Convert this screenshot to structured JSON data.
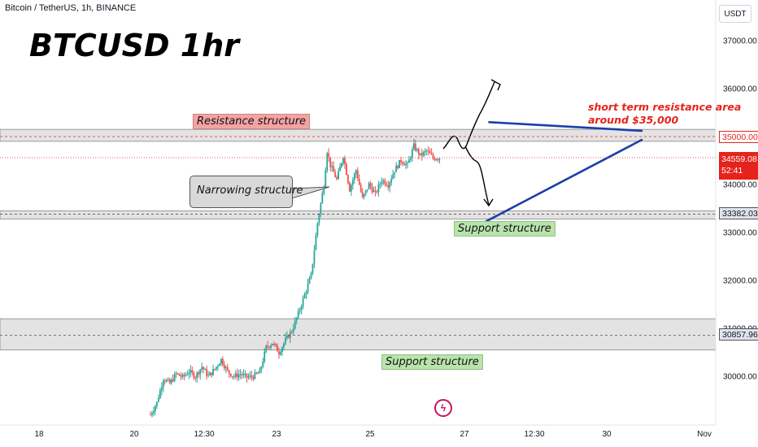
{
  "header": {
    "symbol_line": "Bitcoin / TetherUS, 1h, BINANCE",
    "currency_button": "USDT"
  },
  "title": "BTCUSD 1hr",
  "annotations": {
    "resistance_label": "Resistance structure",
    "narrowing_label": "Narrowing structure",
    "support_label_upper": "Support structure",
    "support_label_lower": "Support structure",
    "note_line1": "short term resistance area",
    "note_line2": "around $35,000"
  },
  "price_tags": {
    "resistance": "35000.00",
    "last_price": "34559.08",
    "countdown": "52:41",
    "support_upper": "33382.03",
    "support_lower": "30857.96"
  },
  "colors": {
    "up": "#26a69a",
    "down": "#ef5350",
    "trendline": "#1a3fa8",
    "note": "#e5231c",
    "zone": "#d9d9d9"
  },
  "icons": {
    "logo": "lightning-icon"
  },
  "chart_data": {
    "type": "candlestick",
    "y_ticks": [
      "37000.00",
      "36000.00",
      "35000.00",
      "34000.00",
      "33000.00",
      "32000.00",
      "31000.00",
      "30000.00"
    ],
    "x_ticks": [
      "18",
      "20",
      "12:30",
      "23",
      "25",
      "27",
      "12:30",
      "30",
      "Nov"
    ],
    "ylim": [
      29100,
      37700
    ],
    "zones": [
      {
        "name": "resistance",
        "low": 34900,
        "high": 35150
      },
      {
        "name": "support_upper",
        "low": 33280,
        "high": 33450
      },
      {
        "name": "support_lower",
        "low": 30550,
        "high": 31200
      }
    ],
    "trendlines": [
      {
        "name": "upper",
        "start": [
          70,
          35300
        ],
        "end": [
          101,
          35120
        ]
      },
      {
        "name": "lower",
        "start": [
          69,
          33230
        ],
        "end": [
          101,
          34930
        ]
      }
    ],
    "price_series": [
      {
        "x": 0,
        "y": 29200
      },
      {
        "x": 2,
        "y": 29450
      },
      {
        "x": 4,
        "y": 29950
      },
      {
        "x": 6,
        "y": 29850
      },
      {
        "x": 8,
        "y": 30050
      },
      {
        "x": 10,
        "y": 29980
      },
      {
        "x": 12,
        "y": 30100
      },
      {
        "x": 14,
        "y": 30000
      },
      {
        "x": 16,
        "y": 30200
      },
      {
        "x": 18,
        "y": 30000
      },
      {
        "x": 20,
        "y": 30150
      },
      {
        "x": 22,
        "y": 30350
      },
      {
        "x": 24,
        "y": 30100
      },
      {
        "x": 26,
        "y": 30000
      },
      {
        "x": 28,
        "y": 30050
      },
      {
        "x": 30,
        "y": 29980
      },
      {
        "x": 32,
        "y": 30000
      },
      {
        "x": 34,
        "y": 30080
      },
      {
        "x": 36,
        "y": 30600
      },
      {
        "x": 38,
        "y": 30700
      },
      {
        "x": 40,
        "y": 30500
      },
      {
        "x": 42,
        "y": 30750
      },
      {
        "x": 44,
        "y": 30950
      },
      {
        "x": 46,
        "y": 31300
      },
      {
        "x": 48,
        "y": 31700
      },
      {
        "x": 50,
        "y": 32100
      },
      {
        "x": 52,
        "y": 33200
      },
      {
        "x": 54,
        "y": 34000
      },
      {
        "x": 55,
        "y": 34700
      },
      {
        "x": 56,
        "y": 34400
      },
      {
        "x": 58,
        "y": 34100
      },
      {
        "x": 60,
        "y": 34600
      },
      {
        "x": 62,
        "y": 33900
      },
      {
        "x": 64,
        "y": 34300
      },
      {
        "x": 66,
        "y": 33700
      },
      {
        "x": 68,
        "y": 34000
      },
      {
        "x": 70,
        "y": 33800
      },
      {
        "x": 72,
        "y": 34100
      },
      {
        "x": 74,
        "y": 34000
      },
      {
        "x": 76,
        "y": 34300
      },
      {
        "x": 78,
        "y": 34500
      },
      {
        "x": 80,
        "y": 34400
      },
      {
        "x": 82,
        "y": 34800
      },
      {
        "x": 84,
        "y": 34600
      },
      {
        "x": 86,
        "y": 34700
      },
      {
        "x": 88,
        "y": 34550
      },
      {
        "x": 90,
        "y": 34559
      }
    ]
  }
}
